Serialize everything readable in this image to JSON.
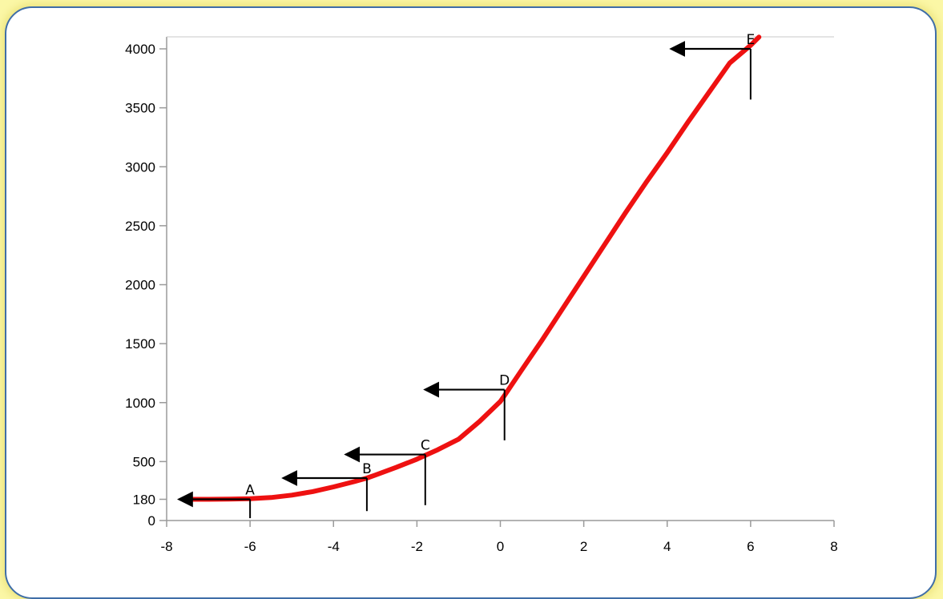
{
  "chart_data": {
    "type": "line",
    "title": "",
    "xlabel": "",
    "ylabel": "",
    "xlim": [
      -8,
      8
    ],
    "ylim": [
      0,
      4000
    ],
    "x_ticks": [
      "-8",
      "-6",
      "-4",
      "-2",
      "0",
      "2",
      "4",
      "6",
      "8"
    ],
    "x_tick_values": [
      -8,
      -6,
      -4,
      -2,
      0,
      2,
      4,
      6,
      8
    ],
    "y_ticks": [
      "0",
      "180",
      "500",
      "1000",
      "1500",
      "2000",
      "2500",
      "3000",
      "3500",
      "4000"
    ],
    "y_tick_values": [
      0,
      180,
      500,
      1000,
      1500,
      2000,
      2500,
      3000,
      3500,
      4000
    ],
    "grid": false,
    "series": [
      {
        "color": "#ee1111",
        "points": [
          [
            -7.5,
            180
          ],
          [
            -7,
            180
          ],
          [
            -6.5,
            181
          ],
          [
            -6,
            185
          ],
          [
            -5.5,
            195
          ],
          [
            -5,
            215
          ],
          [
            -4.5,
            245
          ],
          [
            -4,
            285
          ],
          [
            -3.5,
            330
          ],
          [
            -3.2,
            360
          ],
          [
            -3,
            385
          ],
          [
            -2.5,
            450
          ],
          [
            -2,
            520
          ],
          [
            -1.8,
            553
          ],
          [
            -1.5,
            600
          ],
          [
            -1,
            690
          ],
          [
            -0.5,
            840
          ],
          [
            0,
            1010
          ],
          [
            0.1,
            1060
          ],
          [
            0.5,
            1270
          ],
          [
            1,
            1530
          ],
          [
            1.5,
            1800
          ],
          [
            2,
            2070
          ],
          [
            2.5,
            2340
          ],
          [
            3,
            2610
          ],
          [
            3.5,
            2870
          ],
          [
            4,
            3120
          ],
          [
            4.5,
            3380
          ],
          [
            5,
            3630
          ],
          [
            5.5,
            3880
          ],
          [
            6,
            4030
          ],
          [
            6.2,
            4100
          ]
        ]
      }
    ],
    "annotations": [
      {
        "label": "A",
        "x": -6,
        "y": 180,
        "arrow_to_x": -7.6,
        "drop_to_y": 20
      },
      {
        "label": "B",
        "x": -3.2,
        "y": 360,
        "arrow_to_x": -5.1,
        "drop_to_y": 80
      },
      {
        "label": "C",
        "x": -1.8,
        "y": 560,
        "arrow_to_x": -3.6,
        "drop_to_y": 130
      },
      {
        "label": "D",
        "x": 0.1,
        "y": 1110,
        "arrow_to_x": -1.7,
        "drop_to_y": 680
      },
      {
        "label": "E",
        "x": 6,
        "y": 4000,
        "arrow_to_x": 4.2,
        "drop_to_y": 3570
      }
    ]
  }
}
